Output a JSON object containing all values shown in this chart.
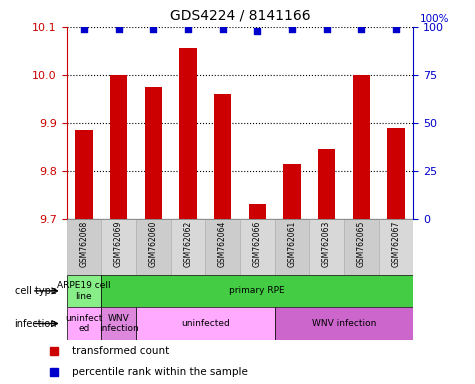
{
  "title": "GDS4224 / 8141166",
  "samples": [
    "GSM762068",
    "GSM762069",
    "GSM762060",
    "GSM762062",
    "GSM762064",
    "GSM762066",
    "GSM762061",
    "GSM762063",
    "GSM762065",
    "GSM762067"
  ],
  "bar_values": [
    9.885,
    10.0,
    9.975,
    10.055,
    9.96,
    9.73,
    9.815,
    9.845,
    10.0,
    9.89
  ],
  "dot_values": [
    99,
    99,
    99,
    99,
    99,
    98,
    99,
    99,
    99,
    99
  ],
  "ylim_left": [
    9.7,
    10.1
  ],
  "ylim_right": [
    0,
    100
  ],
  "yticks_left": [
    9.7,
    9.8,
    9.9,
    10.0,
    10.1
  ],
  "yticks_right": [
    0,
    25,
    50,
    75,
    100
  ],
  "bar_color": "#cc0000",
  "dot_color": "#0000cc",
  "cell_types": [
    {
      "label": "ARPE19 cell\nline",
      "start": 0,
      "end": 1,
      "color": "#88ee88"
    },
    {
      "label": "primary RPE",
      "start": 1,
      "end": 10,
      "color": "#44cc44"
    }
  ],
  "infections": [
    {
      "label": "uninfect\ned",
      "start": 0,
      "end": 1,
      "color": "#ffaaff"
    },
    {
      "label": "WNV\ninfection",
      "start": 1,
      "end": 2,
      "color": "#dd88dd"
    },
    {
      "label": "uninfected",
      "start": 2,
      "end": 6,
      "color": "#ffaaff"
    },
    {
      "label": "WNV infection",
      "start": 6,
      "end": 10,
      "color": "#cc66cc"
    }
  ],
  "left_label_color": "#cc0000",
  "right_label_color": "#0000cc",
  "bg_color": "#ffffff",
  "bar_width": 0.5
}
